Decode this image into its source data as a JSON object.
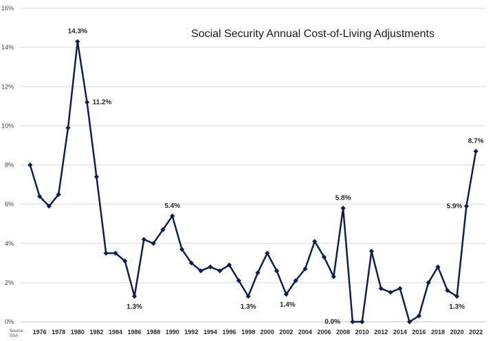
{
  "chart_data": {
    "type": "line",
    "title": "Social Security Annual Cost-of-Living Adjustments",
    "source_note": [
      "Source:",
      "SSA"
    ],
    "xlabel": "",
    "ylabel": "",
    "ylim": [
      0,
      16
    ],
    "y_ticks": [
      "0%",
      "2%",
      "4%",
      "6%",
      "8%",
      "10%",
      "12%",
      "14%",
      "16%"
    ],
    "x_ticks": [
      "1976",
      "1978",
      "1980",
      "1982",
      "1984",
      "1986",
      "1988",
      "1990",
      "1992",
      "1994",
      "1996",
      "1998",
      "2000",
      "2002",
      "2004",
      "2006",
      "2008",
      "2010",
      "2012",
      "2014",
      "2016",
      "2018",
      "2020",
      "2022"
    ],
    "grid": true,
    "series": [
      {
        "x": [
          1975,
          1976,
          1977,
          1978,
          1979,
          1980,
          1981,
          1982,
          1983,
          1984,
          1985,
          1986,
          1987,
          1988,
          1989,
          1990,
          1991,
          1992,
          1993,
          1994,
          1995,
          1996,
          1997,
          1998,
          1999,
          2000,
          2001,
          2002,
          2003,
          2004,
          2005,
          2006,
          2007,
          2008,
          2009,
          2010,
          2011,
          2012,
          2013,
          2014,
          2015,
          2016,
          2017,
          2018,
          2019,
          2020,
          2021,
          2022
        ],
        "values": [
          8.0,
          6.4,
          5.9,
          6.5,
          9.9,
          14.3,
          11.2,
          7.4,
          3.5,
          3.5,
          3.1,
          1.3,
          4.2,
          4.0,
          4.7,
          5.4,
          3.7,
          3.0,
          2.6,
          2.8,
          2.6,
          2.9,
          2.1,
          1.3,
          2.5,
          3.5,
          2.6,
          1.4,
          2.1,
          2.7,
          4.1,
          3.3,
          2.3,
          5.8,
          0.0,
          0.0,
          3.6,
          1.7,
          1.5,
          1.7,
          0.0,
          0.3,
          2.0,
          2.8,
          1.6,
          1.3,
          5.9,
          8.7
        ]
      }
    ],
    "annotations": [
      {
        "x": 1980,
        "text": "14.3%"
      },
      {
        "x": 1981,
        "text": "11.2%"
      },
      {
        "x": 1986,
        "text": "1.3%"
      },
      {
        "x": 1990,
        "text": "5.4%"
      },
      {
        "x": 1998,
        "text": "1.3%"
      },
      {
        "x": 2002,
        "text": "1.4%"
      },
      {
        "x": 2008,
        "text": "5.8%"
      },
      {
        "x": 2008,
        "text": "0.0%"
      },
      {
        "x": 2020,
        "text": "1.3%"
      },
      {
        "x": 2021,
        "text": "5.9%"
      },
      {
        "x": 2022,
        "text": "8.7%"
      }
    ],
    "colors": {
      "series": "#0e1f4d",
      "grid": "#d9d9d9",
      "text": "#262626"
    }
  }
}
